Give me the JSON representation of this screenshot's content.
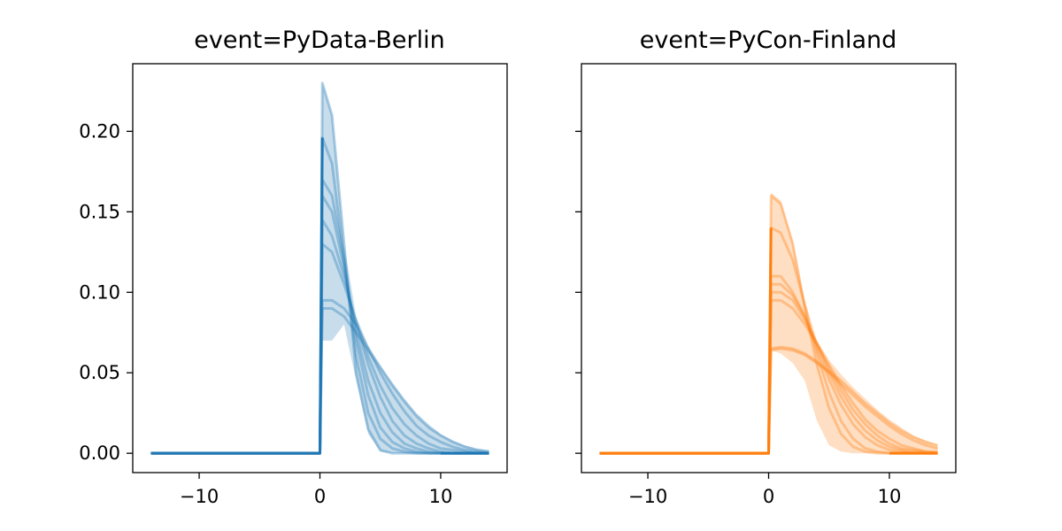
{
  "chart_data": {
    "type": "line",
    "x": [
      -14,
      -13,
      -12,
      -11,
      -10,
      -9,
      -8,
      -7,
      -6,
      -5,
      -4,
      -3,
      -2,
      -1,
      0,
      0.2,
      1,
      2,
      3,
      4,
      5,
      6,
      7,
      8,
      9,
      10,
      11,
      12,
      13,
      14
    ],
    "xlim": [
      -15.5,
      15.5
    ],
    "ylim": [
      -0.012,
      0.242
    ],
    "xticks": [
      -10,
      0,
      10
    ],
    "yticks": [
      0.0,
      0.05,
      0.1,
      0.15,
      0.2
    ],
    "xtick_labels": [
      "−10",
      "0",
      "10"
    ],
    "ytick_labels": [
      "0.00",
      "0.05",
      "0.10",
      "0.15",
      "0.20"
    ],
    "panels": [
      {
        "title": "event=PyData-Berlin",
        "color": "#1f77b4",
        "show_yticklabels": true,
        "curves_after_zero": [
          [
            0.23,
            0.21,
            0.13,
            0.05,
            0.015,
            0.002,
            0,
            0,
            0,
            0,
            0,
            0,
            0,
            0,
            0
          ],
          [
            0.196,
            0.18,
            0.12,
            0.06,
            0.025,
            0.009,
            0.003,
            0.001,
            0,
            0,
            0,
            0,
            0,
            0,
            0
          ],
          [
            0.17,
            0.16,
            0.12,
            0.07,
            0.036,
            0.016,
            0.007,
            0.003,
            0.001,
            0,
            0,
            0,
            0,
            0,
            0
          ],
          [
            0.16,
            0.15,
            0.115,
            0.075,
            0.045,
            0.025,
            0.013,
            0.006,
            0.003,
            0.001,
            0,
            0,
            0,
            0,
            0
          ],
          [
            0.145,
            0.135,
            0.11,
            0.08,
            0.055,
            0.035,
            0.02,
            0.011,
            0.006,
            0.003,
            0.001,
            0,
            0,
            0,
            0
          ],
          [
            0.13,
            0.125,
            0.105,
            0.082,
            0.06,
            0.042,
            0.028,
            0.018,
            0.011,
            0.006,
            0.003,
            0.002,
            0.001,
            0,
            0
          ],
          [
            0.095,
            0.095,
            0.09,
            0.08,
            0.065,
            0.05,
            0.037,
            0.026,
            0.017,
            0.011,
            0.007,
            0.004,
            0.002,
            0.001,
            0
          ],
          [
            0.09,
            0.09,
            0.085,
            0.075,
            0.064,
            0.053,
            0.042,
            0.032,
            0.023,
            0.016,
            0.011,
            0.007,
            0.004,
            0.002,
            0.001
          ]
        ],
        "band_upper": [
          0.23,
          0.21,
          0.13,
          0.085,
          0.067,
          0.055,
          0.044,
          0.034,
          0.025,
          0.018,
          0.012,
          0.008,
          0.005,
          0.003,
          0.002
        ],
        "band_lower": [
          0.07,
          0.07,
          0.08,
          0.045,
          0.012,
          0.001,
          0,
          0,
          0,
          0,
          0,
          0,
          0,
          0,
          0
        ]
      },
      {
        "title": "event=PyCon-Finland",
        "color": "#ff7f0e",
        "show_yticklabels": false,
        "curves_after_zero": [
          [
            0.16,
            0.155,
            0.13,
            0.09,
            0.055,
            0.028,
            0.012,
            0.004,
            0.001,
            0,
            0,
            0,
            0,
            0,
            0
          ],
          [
            0.14,
            0.137,
            0.12,
            0.092,
            0.062,
            0.038,
            0.02,
            0.009,
            0.003,
            0.001,
            0,
            0,
            0,
            0,
            0
          ],
          [
            0.11,
            0.11,
            0.1,
            0.085,
            0.065,
            0.046,
            0.03,
            0.018,
            0.01,
            0.005,
            0.002,
            0.001,
            0,
            0,
            0
          ],
          [
            0.105,
            0.105,
            0.098,
            0.085,
            0.068,
            0.05,
            0.035,
            0.023,
            0.014,
            0.008,
            0.004,
            0.002,
            0.001,
            0,
            0
          ],
          [
            0.1,
            0.1,
            0.095,
            0.083,
            0.068,
            0.053,
            0.039,
            0.027,
            0.018,
            0.011,
            0.006,
            0.003,
            0.002,
            0.001,
            0
          ],
          [
            0.095,
            0.095,
            0.09,
            0.08,
            0.068,
            0.055,
            0.042,
            0.031,
            0.021,
            0.014,
            0.009,
            0.005,
            0.003,
            0.001,
            0.001
          ],
          [
            0.065,
            0.066,
            0.065,
            0.062,
            0.057,
            0.051,
            0.045,
            0.038,
            0.031,
            0.025,
            0.019,
            0.014,
            0.01,
            0.007,
            0.005
          ],
          [
            0.064,
            0.065,
            0.064,
            0.061,
            0.056,
            0.05,
            0.043,
            0.036,
            0.029,
            0.023,
            0.017,
            0.012,
            0.008,
            0.005,
            0.003
          ]
        ],
        "band_upper": [
          0.162,
          0.157,
          0.132,
          0.095,
          0.07,
          0.058,
          0.049,
          0.041,
          0.034,
          0.027,
          0.021,
          0.016,
          0.011,
          0.008,
          0.005
        ],
        "band_lower": [
          0.064,
          0.062,
          0.056,
          0.045,
          0.02,
          0.005,
          0.001,
          0,
          0,
          0,
          0,
          0,
          0,
          0,
          0
        ]
      }
    ]
  }
}
